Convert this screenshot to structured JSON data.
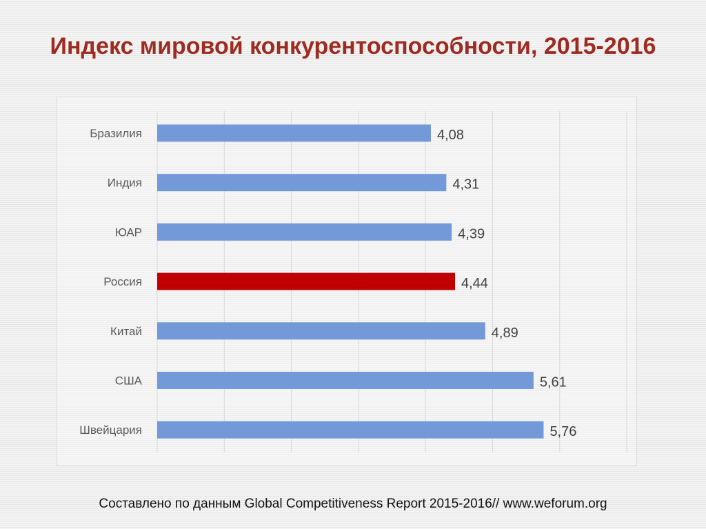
{
  "title": "Индекс мировой конкурентоспособности, 2015-2016",
  "source_note": "Составлено по данным Global Competitiveness Report 2015-2016// www.weforum.org",
  "colors": {
    "bar_default": "#7399d9",
    "bar_highlight": "#c00000",
    "title": "#9e2b20",
    "label_text": "#595959",
    "value_text": "#404040"
  },
  "chart_data": {
    "type": "bar",
    "orientation": "horizontal",
    "categories": [
      "Бразилия",
      "Индия",
      "ЮАР",
      "Россия",
      "Китай",
      "США",
      "Швейцария"
    ],
    "values": [
      4.08,
      4.31,
      4.39,
      4.44,
      4.89,
      5.61,
      5.76
    ],
    "value_labels": [
      "4,08",
      "4,31",
      "4,39",
      "4,44",
      "4,89",
      "5,61",
      "5,76"
    ],
    "highlight": "Россия",
    "xlim": [
      0,
      7
    ],
    "grid": true,
    "legend": "none",
    "title": "",
    "xlabel": "",
    "ylabel": ""
  }
}
